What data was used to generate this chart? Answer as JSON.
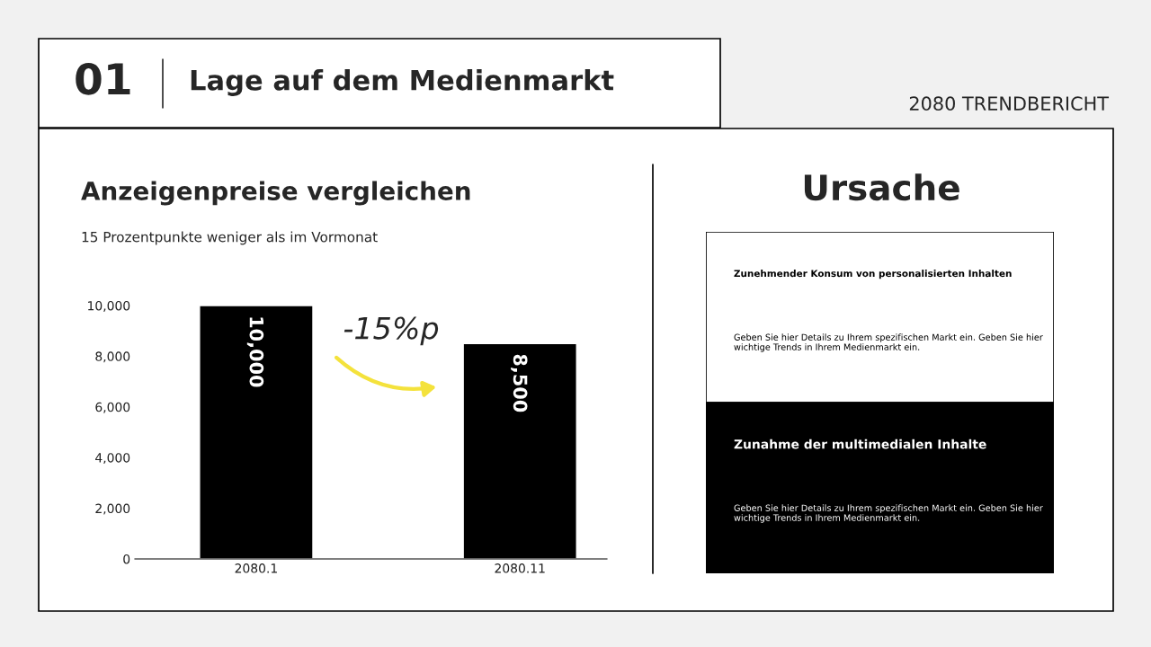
{
  "chart_data": [
    {
      "type": "bar",
      "title": "Anzeigenpreise vergleichen",
      "subtitle": "15 Prozentpunkte weniger als im Vormonat",
      "categories": [
        "2080.1",
        "2080.11"
      ],
      "values": [
        10000,
        8500
      ],
      "color": "#000000",
      "value_labels": [
        "10,000",
        "8,500"
      ],
      "ylim": [
        0,
        10000
      ],
      "yticks": [
        {
          "value": 0,
          "label": "0"
        },
        {
          "value": 2000,
          "label": "2,000"
        },
        {
          "value": 4000,
          "label": "4,000"
        },
        {
          "value": 6000,
          "label": "6,000"
        },
        {
          "value": 8000,
          "label": "8,000"
        },
        {
          "value": 10000,
          "label": "10,000"
        }
      ],
      "annotations": [
        "01",
        "Lage auf dem Medienmarkt",
        "2080 TRENDBERICHT",
        "-15%p"
      ]
    },
    {
      "type": "other",
      "title": "Ursache",
      "annotations": [
        "Zunehmender Konsum von personalisierten Inhalten",
        "Geben Sie hier Details zu Ihrem spezifischen Markt ein. Geben Sie hier wichtige Trends in Ihrem Medienmarkt ein.",
        "Zunahme der multimedialen Inhalte",
        "Geben Sie hier Details zu Ihrem spezifischen Markt ein. Geben Sie hier wichtige Trends in Ihrem Medienmarkt ein."
      ]
    }
  ]
}
